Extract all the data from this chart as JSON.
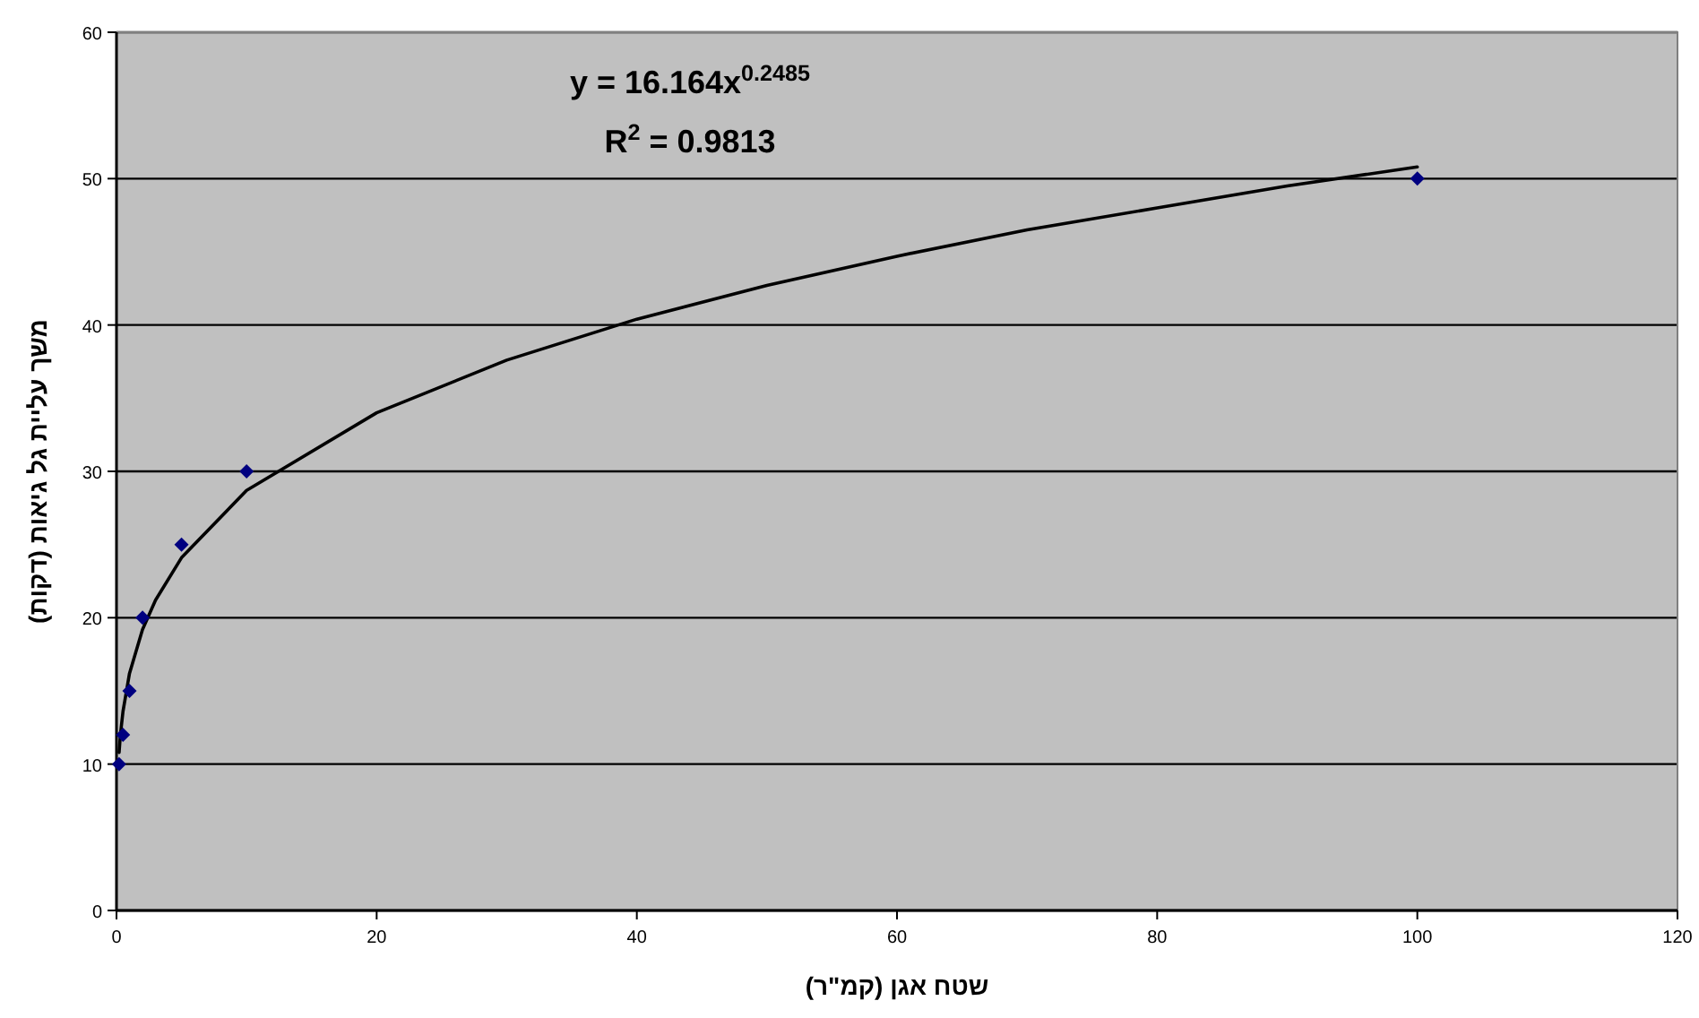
{
  "chart_data": {
    "type": "scatter",
    "xlabel": "שטח אגן (קמ\"ר)",
    "ylabel": "משך עליית גל גיאות (דקות)",
    "xlim": [
      0,
      120
    ],
    "xticks": [
      0,
      20,
      40,
      60,
      80,
      100,
      120
    ],
    "ylim": [
      0,
      60
    ],
    "yticks": [
      0,
      10,
      20,
      30,
      40,
      50,
      60
    ],
    "grid": "y",
    "annotations": [
      "y = 16.164x$^{0.2485}$",
      "R$^{2}$ = 0.9813"
    ],
    "series": [
      {
        "type": "scatter",
        "color": "#000080",
        "marker": "diamond",
        "x": [
          0.2,
          0.5,
          1,
          2,
          5,
          10,
          100
        ],
        "values": [
          10,
          12,
          15,
          20,
          25,
          30,
          50
        ]
      },
      {
        "type": "line",
        "color": "#000000",
        "marker": "none",
        "line_style": "solid",
        "x": [
          0.2,
          0.3,
          0.5,
          1,
          2,
          3,
          5,
          10,
          20,
          30,
          40,
          50,
          60,
          70,
          80,
          90,
          100
        ],
        "values": [
          10.8,
          12.0,
          13.6,
          16.2,
          19.2,
          21.2,
          24.1,
          28.7,
          34.0,
          37.6,
          40.4,
          42.7,
          44.7,
          46.5,
          48.0,
          49.5,
          50.8
        ]
      }
    ]
  }
}
